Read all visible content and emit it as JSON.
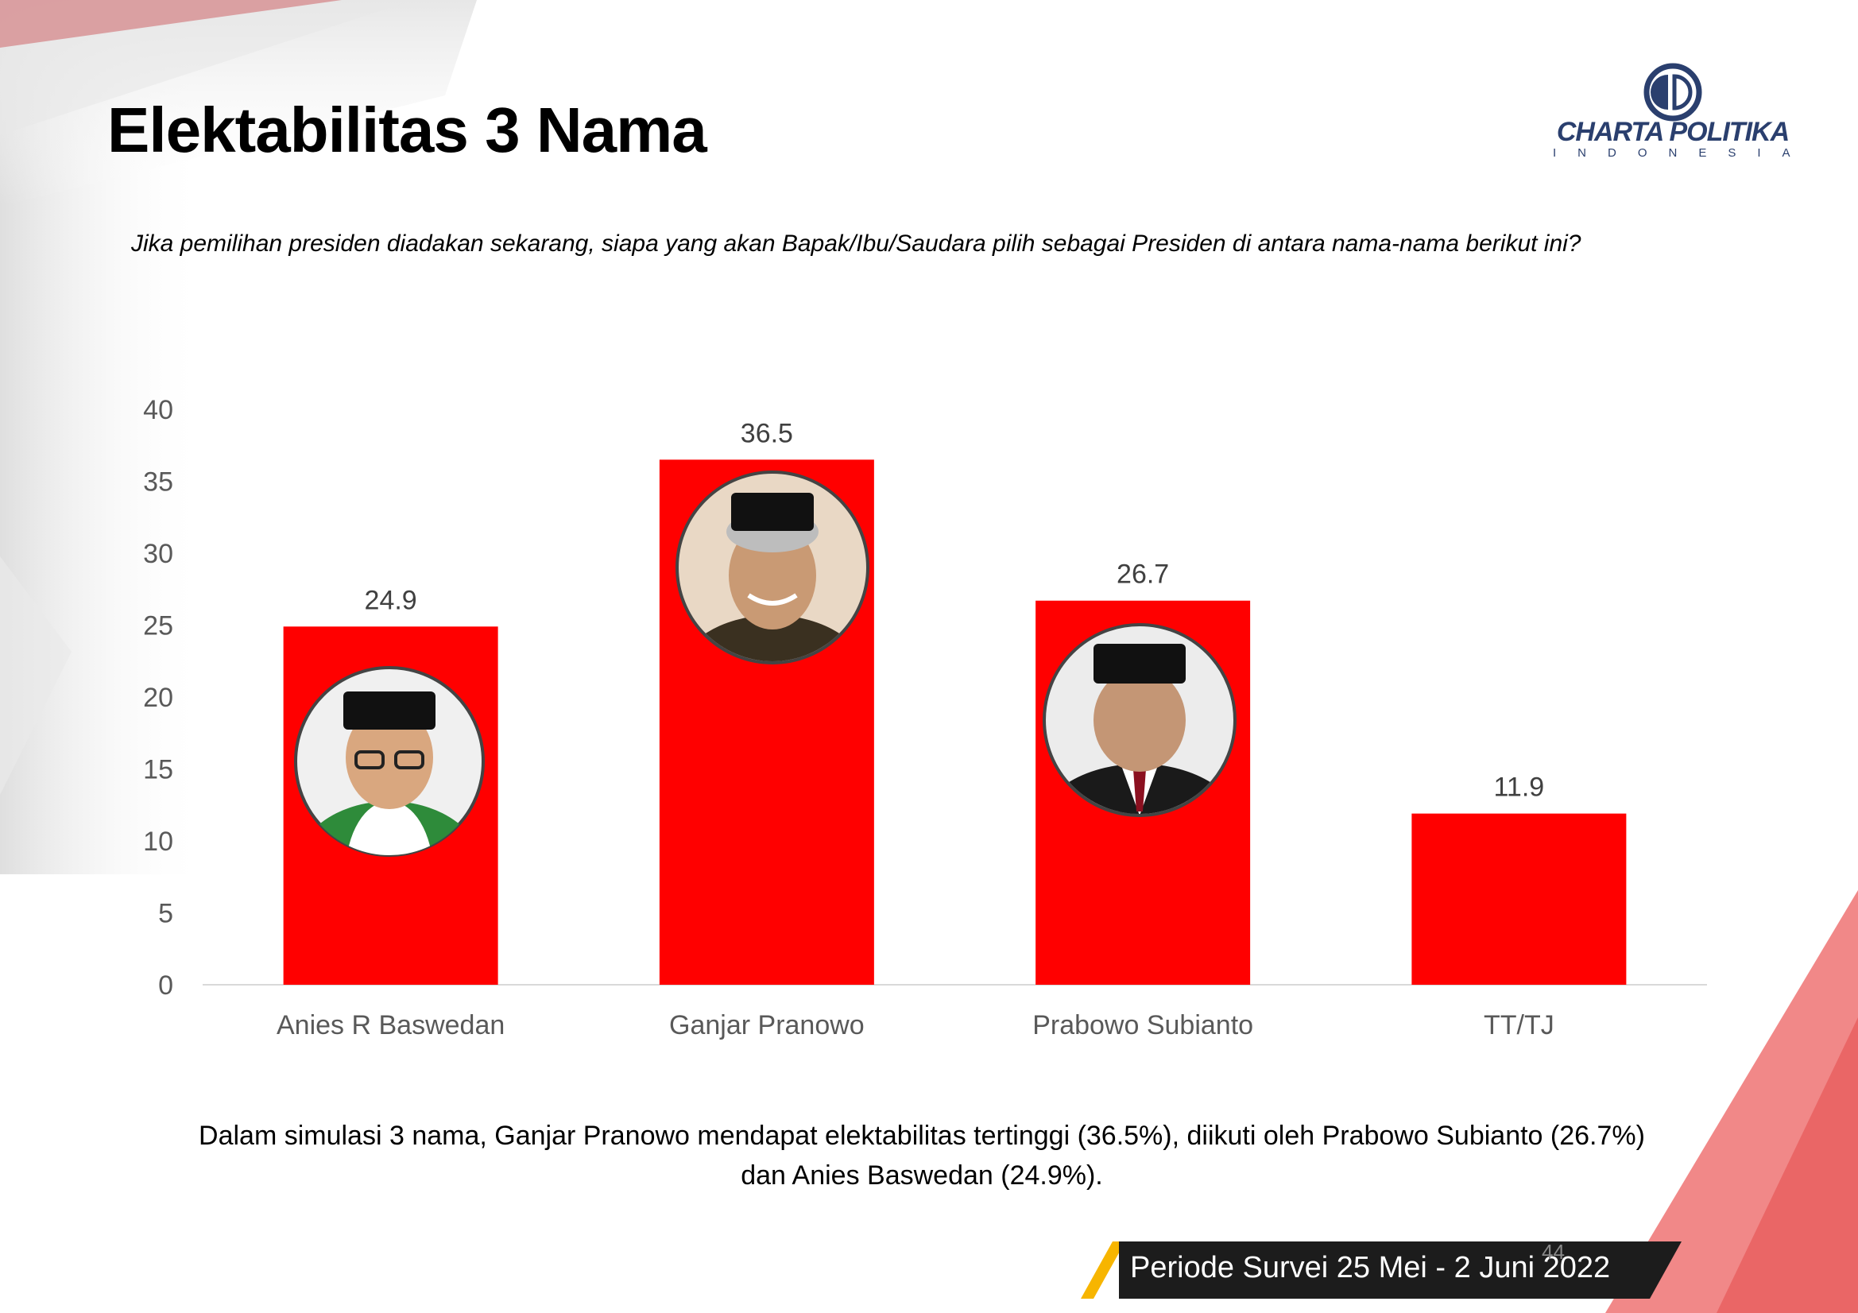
{
  "title": "Elektabilitas 3 Nama",
  "question": "Jika pemilihan presiden diadakan sekarang, siapa yang akan Bapak/Ibu/Saudara pilih sebagai Presiden di antara nama-nama berikut ini?",
  "logo": {
    "name": "CHARTA POLITIKA",
    "sub": "INDONESIA"
  },
  "chart_data": {
    "type": "bar",
    "title": "",
    "xlabel": "",
    "ylabel": "",
    "categories": [
      "Anies R Baswedan",
      "Ganjar Pranowo",
      "Prabowo Subianto",
      "TT/TJ"
    ],
    "values": [
      24.9,
      36.5,
      26.7,
      11.9
    ],
    "data_labels": [
      "24.9",
      "36.5",
      "26.7",
      "11.9"
    ],
    "ylim": [
      0,
      40
    ],
    "yticks": [
      0,
      5,
      10,
      15,
      20,
      25,
      30,
      35,
      40
    ],
    "grid": false,
    "legend": "none",
    "bar_color": "#ff0000"
  },
  "summary": {
    "line1": "Dalam simulasi 3 nama, Ganjar Pranowo mendapat elektabilitas tertinggi (36.5%), diikuti oleh Prabowo Subianto (26.7%)",
    "line2": "dan Anies Baswedan (24.9%)."
  },
  "period": "Periode Survei 25 Mei - 2 Juni 2022",
  "page_number": "44",
  "colors": {
    "bar": "#ff0000",
    "accent": "#f7b500",
    "period_bg": "#1c1c1c",
    "logo": "#2a3f6e"
  }
}
